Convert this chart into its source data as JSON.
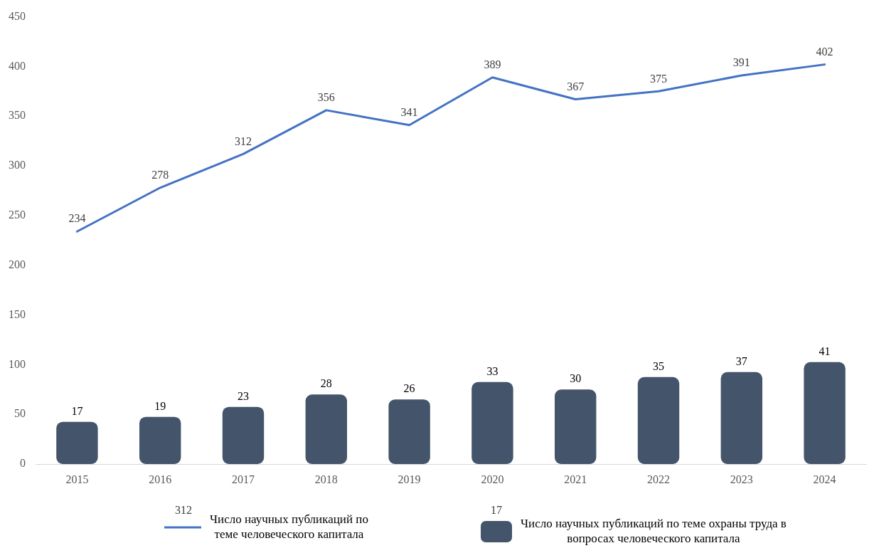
{
  "chart_data": {
    "type": "bar",
    "categories": [
      "2015",
      "2016",
      "2017",
      "2018",
      "2019",
      "2020",
      "2021",
      "2022",
      "2023",
      "2024"
    ],
    "series": [
      {
        "name": "Число научных публикаций по теме человеческого капитала",
        "type": "line",
        "color": "#4472c4",
        "values": [
          234,
          278,
          312,
          356,
          341,
          389,
          367,
          375,
          391,
          402
        ]
      },
      {
        "name": "Число научных публикаций по теме охраны труда в вопросах человеческого капитала",
        "color": "#44546a",
        "axis": "y2",
        "values": [
          17,
          19,
          23,
          28,
          26,
          33,
          30,
          35,
          37,
          41
        ]
      }
    ],
    "ylim": [
      0,
      450
    ],
    "yticks": [
      0,
      50,
      100,
      150,
      200,
      250,
      300,
      350,
      400,
      450
    ],
    "data_labels": true,
    "grid": false,
    "legend": "bottom",
    "annotations": [
      "312",
      "17"
    ]
  }
}
